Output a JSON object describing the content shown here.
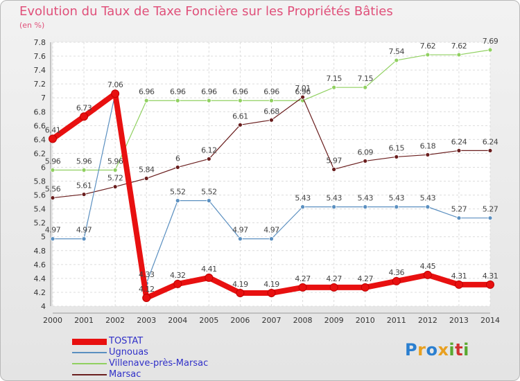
{
  "title": "Evolution du Taux de Taxe Foncière sur les Propriétés Bâties",
  "subtitle": "(en %)",
  "logo": {
    "text": "Proxiti",
    "colors": [
      "#2a7fd0",
      "#e8a020",
      "#2a7fd0",
      "#e8a020",
      "#5aa830",
      "#d03030",
      "#5aa830"
    ]
  },
  "chart_data": {
    "type": "line",
    "title": "Evolution du Taux de Taxe Foncière sur les Propriétés Bâties",
    "ylabel": "(en %)",
    "xlabel": "",
    "x": [
      "2000",
      "2001",
      "2002",
      "2003",
      "2004",
      "2005",
      "2006",
      "2007",
      "2008",
      "2009",
      "2010",
      "2011",
      "2012",
      "2013",
      "2014"
    ],
    "ylim": [
      4,
      7.8
    ],
    "yticks": [
      "4",
      "4.2",
      "4.4",
      "4.6",
      "4.8",
      "5",
      "5.2",
      "5.4",
      "5.6",
      "5.8",
      "6",
      "6.2",
      "6.4",
      "6.6",
      "6.8",
      "7",
      "7.2",
      "7.4",
      "7.6",
      "7.8"
    ],
    "grid": true,
    "series": [
      {
        "name": "TOSTAT",
        "color": "#e81010",
        "values": [
          6.41,
          6.73,
          7.06,
          4.12,
          4.32,
          4.41,
          4.19,
          4.19,
          4.27,
          4.27,
          4.27,
          4.36,
          4.45,
          4.31,
          4.31
        ],
        "labels": [
          "6.41",
          "6.73",
          "7.06",
          "4.12",
          "4.32",
          "4.41",
          "4.19",
          "4.19",
          "4.27",
          "4.27",
          "4.27",
          "4.36",
          "4.45",
          "4.31",
          "4.31"
        ]
      },
      {
        "name": "Ugnouas",
        "color": "#5a8fc0",
        "values": [
          4.97,
          4.97,
          7.06,
          4.33,
          5.52,
          5.52,
          4.97,
          4.97,
          5.43,
          5.43,
          5.43,
          5.43,
          5.43,
          5.27,
          5.27
        ],
        "labels": [
          "4.97",
          "4.97",
          "",
          "4.33",
          "5.52",
          "5.52",
          "4.97",
          "4.97",
          "5.43",
          "5.43",
          "5.43",
          "5.43",
          "5.43",
          "5.27",
          "5.27"
        ]
      },
      {
        "name": "Villenave-près-Marsac",
        "color": "#90d060",
        "values": [
          5.96,
          5.96,
          5.96,
          6.96,
          6.96,
          6.96,
          6.96,
          6.96,
          6.96,
          7.15,
          7.15,
          7.54,
          7.62,
          7.62,
          7.69
        ],
        "labels": [
          "5.96",
          "5.96",
          "5.96",
          "6.96",
          "6.96",
          "6.96",
          "6.96",
          "6.96",
          "6.96",
          "7.15",
          "7.15",
          "7.54",
          "7.62",
          "7.62",
          "7.69"
        ]
      },
      {
        "name": "Marsac",
        "color": "#6a1e1e",
        "values": [
          5.56,
          5.61,
          5.72,
          5.84,
          6,
          6.12,
          6.61,
          6.68,
          7.01,
          5.97,
          6.09,
          6.15,
          6.18,
          6.24,
          6.24
        ],
        "labels": [
          "5.56",
          "5.61",
          "5.72",
          "5.84",
          "6",
          "6.12",
          "6.61",
          "6.68",
          "7.01",
          "5.97",
          "6.09",
          "6.15",
          "6.18",
          "6.24",
          "6.24"
        ]
      }
    ]
  }
}
